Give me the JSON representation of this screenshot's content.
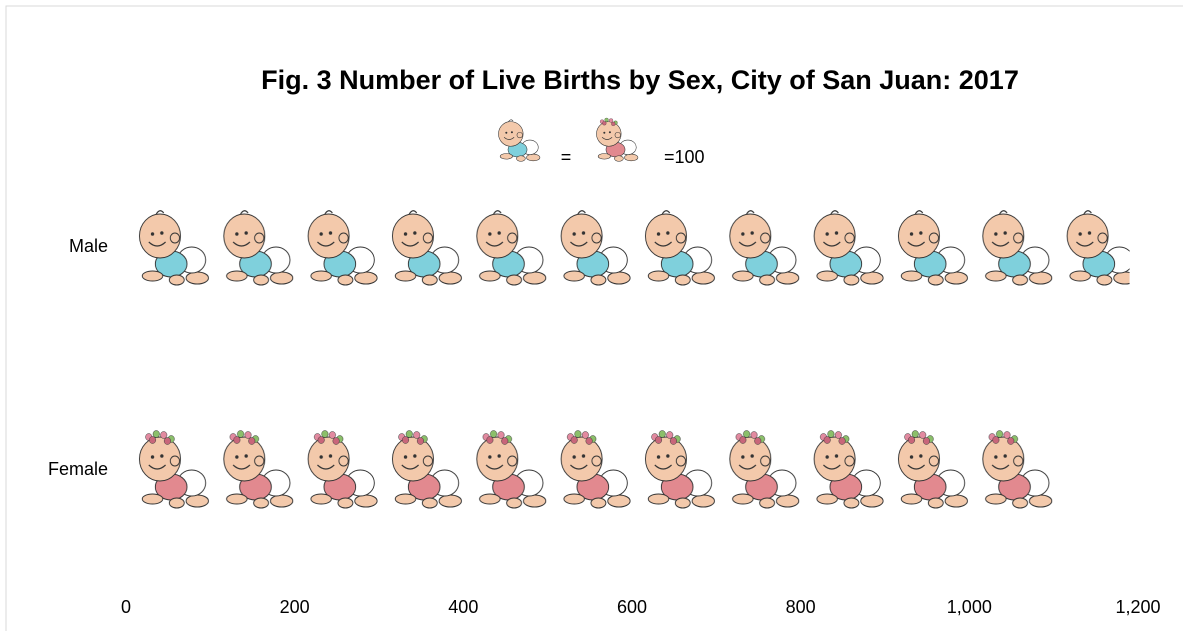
{
  "chart_data": {
    "type": "pictograph",
    "title": "Fig. 3 Number of Live Births by Sex, City of San Juan: 2017",
    "legend": {
      "equals": "=",
      "unit_label": "=100",
      "unit": 100
    },
    "categories": [
      "Male",
      "Female"
    ],
    "series": [
      {
        "name": "Male",
        "color": "#7fd0dc",
        "values": [
          1190,
          null
        ]
      },
      {
        "name": "Female",
        "color": "#e2898f",
        "values": [
          null,
          1115
        ]
      }
    ],
    "xlim": [
      0,
      1200
    ],
    "xticks": [
      0,
      200,
      400,
      600,
      800,
      {
        "value": 1000,
        "label": "1,000"
      },
      {
        "value": 1200,
        "label": "1,200"
      }
    ],
    "grid": false
  }
}
